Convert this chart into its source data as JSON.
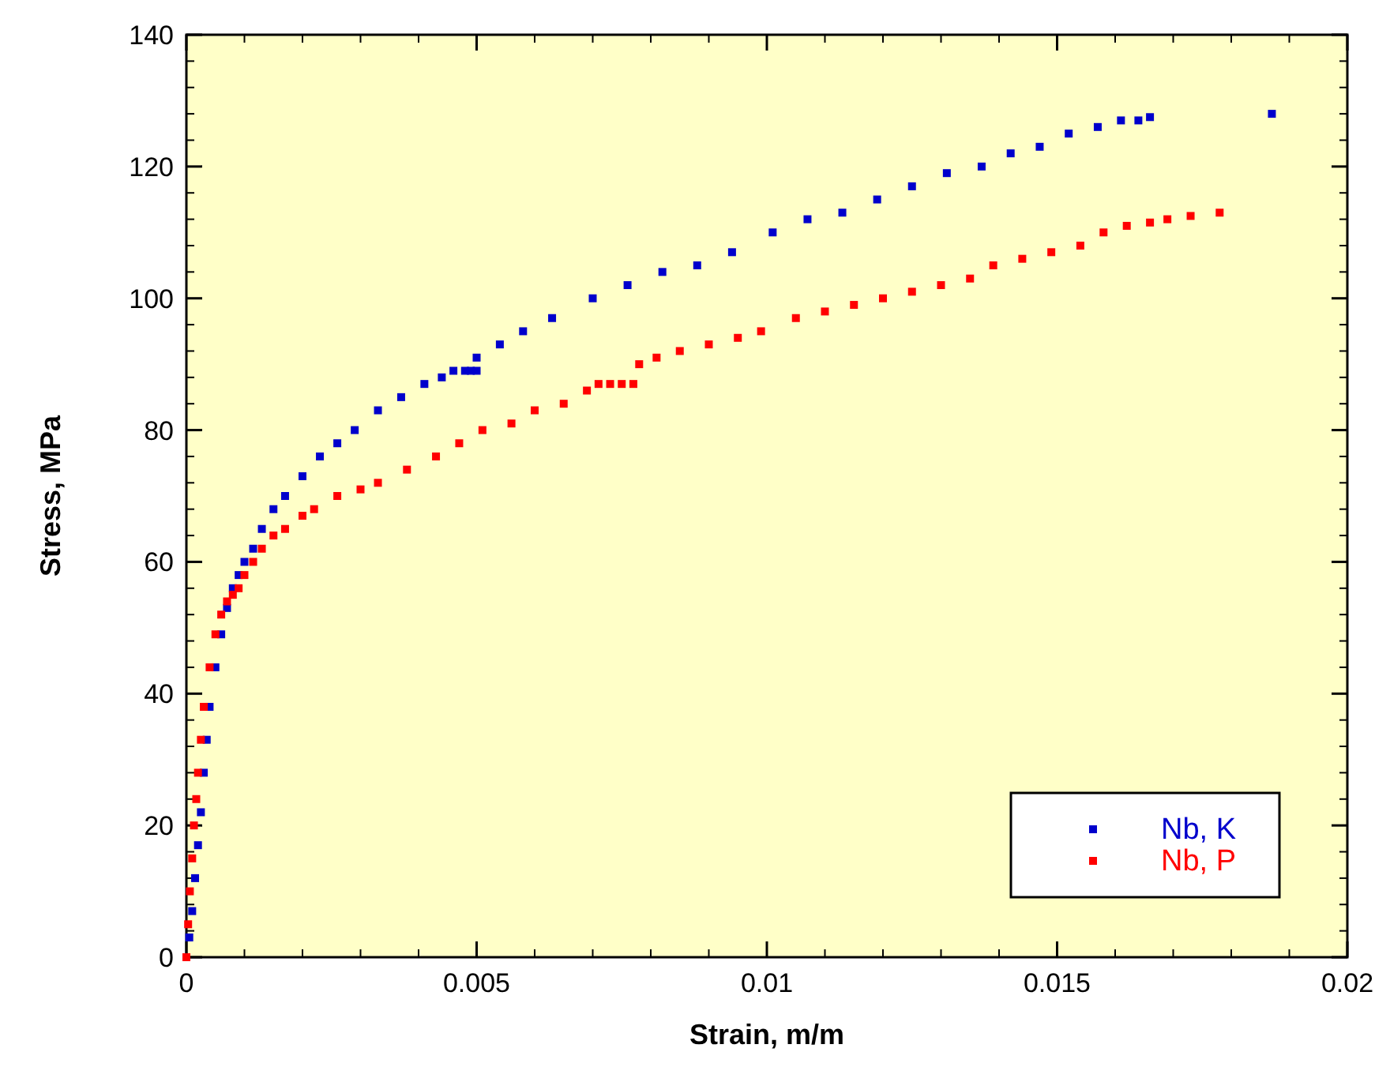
{
  "chart_data": {
    "type": "scatter",
    "xlabel": "Strain, m/m",
    "ylabel": "Stress, MPa",
    "xlim": [
      0,
      0.02
    ],
    "xticks": [
      0,
      0.005,
      0.01,
      0.015,
      0.02
    ],
    "ylim": [
      0,
      140
    ],
    "yticks": [
      0,
      20,
      40,
      60,
      80,
      100,
      120,
      140
    ],
    "marker": "square",
    "legend": "bottom right",
    "grid": false,
    "series": [
      {
        "name": "Nb, K",
        "color": "#0000cc",
        "x": [
          5e-05,
          0.0001,
          0.00015,
          0.0002,
          0.00025,
          0.0003,
          0.00035,
          0.0004,
          0.0005,
          0.0006,
          0.0007,
          0.0008,
          0.0009,
          0.001,
          0.00115,
          0.0013,
          0.0015,
          0.0017,
          0.002,
          0.0023,
          0.0026,
          0.0029,
          0.0033,
          0.0037,
          0.0041,
          0.0044,
          0.0046,
          0.0048,
          0.0049,
          0.005,
          0.005,
          0.0054,
          0.0058,
          0.0063,
          0.007,
          0.0076,
          0.0082,
          0.0088,
          0.0094,
          0.0101,
          0.0107,
          0.0113,
          0.0119,
          0.0125,
          0.0131,
          0.0137,
          0.0142,
          0.0147,
          0.0152,
          0.0157,
          0.0161,
          0.0164,
          0.0166,
          0.0187
        ],
        "values": [
          3,
          7,
          12,
          17,
          22,
          28,
          33,
          38,
          44,
          49,
          53,
          56,
          58,
          60,
          62,
          65,
          68,
          70,
          73,
          76,
          78,
          80,
          83,
          85,
          87,
          88,
          89,
          89,
          89,
          89,
          91,
          93,
          95,
          97,
          100,
          102,
          104,
          105,
          107,
          110,
          112,
          113,
          115,
          117,
          119,
          120,
          122,
          123,
          125,
          126,
          127,
          127,
          127.5,
          128
        ]
      },
      {
        "name": "Nb, P",
        "color": "#ff0000",
        "x": [
          0,
          3e-05,
          6e-05,
          0.0001,
          0.00013,
          0.00017,
          0.0002,
          0.00025,
          0.0003,
          0.0004,
          0.0005,
          0.0006,
          0.0007,
          0.0008,
          0.0009,
          0.001,
          0.00115,
          0.0013,
          0.0015,
          0.0017,
          0.002,
          0.0022,
          0.0026,
          0.003,
          0.0033,
          0.0038,
          0.0043,
          0.0047,
          0.0051,
          0.0056,
          0.006,
          0.0065,
          0.0069,
          0.0071,
          0.0073,
          0.0075,
          0.0077,
          0.0078,
          0.0081,
          0.0085,
          0.009,
          0.0095,
          0.0099,
          0.0105,
          0.011,
          0.0115,
          0.012,
          0.0125,
          0.013,
          0.0135,
          0.0139,
          0.0144,
          0.0149,
          0.0154,
          0.0158,
          0.0162,
          0.0166,
          0.0169,
          0.0173,
          0.0178
        ],
        "values": [
          0,
          5,
          10,
          15,
          20,
          24,
          28,
          33,
          38,
          44,
          49,
          52,
          54,
          55,
          56,
          58,
          60,
          62,
          64,
          65,
          67,
          68,
          70,
          71,
          72,
          74,
          76,
          78,
          80,
          81,
          83,
          84,
          86,
          87,
          87,
          87,
          87,
          90,
          91,
          92,
          93,
          94,
          95,
          97,
          98,
          99,
          100,
          101,
          102,
          103,
          105,
          106,
          107,
          108,
          110,
          111,
          111.5,
          112,
          112.5,
          113
        ]
      }
    ]
  }
}
